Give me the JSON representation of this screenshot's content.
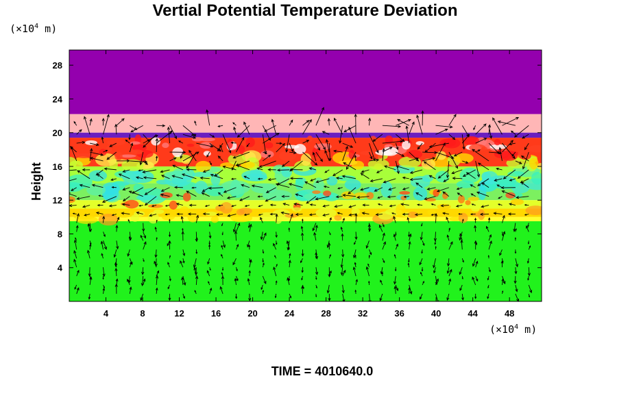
{
  "chart_data": {
    "type": "heatmap",
    "title": "Vertial Potential Temperature Deviation",
    "ylabel": "Height",
    "y_unit_text": "(×10",
    "y_unit_exp": "4",
    "y_unit_tail": " m)",
    "x_unit_text": "(×10",
    "x_unit_exp": "4",
    "x_unit_tail": " m)",
    "x_ticks": [
      4,
      8,
      12,
      16,
      20,
      24,
      28,
      32,
      36,
      40,
      44,
      48
    ],
    "y_ticks": [
      4,
      8,
      12,
      16,
      20,
      24,
      28
    ],
    "xlim": [
      0,
      51.5
    ],
    "ylim": [
      0,
      29.8
    ],
    "grid": false,
    "layers": [
      {
        "y_from": 22.2,
        "y_to": 29.8,
        "color": "#9400ae"
      },
      {
        "y_from": 20.0,
        "y_to": 22.2,
        "color": "#ffb6b6"
      },
      {
        "y_from": 19.4,
        "y_to": 20.0,
        "color": "#6a1fc0"
      },
      {
        "y_from": 16.0,
        "y_to": 19.4,
        "color": "#ff3a1a"
      },
      {
        "y_from": 14.0,
        "y_to": 16.0,
        "color": "#a8ff3a"
      },
      {
        "y_from": 12.0,
        "y_to": 14.0,
        "color": "#7cf060"
      },
      {
        "y_from": 11.0,
        "y_to": 12.0,
        "color": "#e4ff2a"
      },
      {
        "y_from": 10.0,
        "y_to": 11.0,
        "color": "#ffd800"
      },
      {
        "y_from": 9.5,
        "y_to": 10.0,
        "color": "#ffff30"
      },
      {
        "y_from": 0.0,
        "y_to": 9.5,
        "color": "#21f21c"
      }
    ],
    "vector_field": "wind arrows over the domain"
  },
  "footer": {
    "time_label": "TIME = 4010640.0"
  }
}
